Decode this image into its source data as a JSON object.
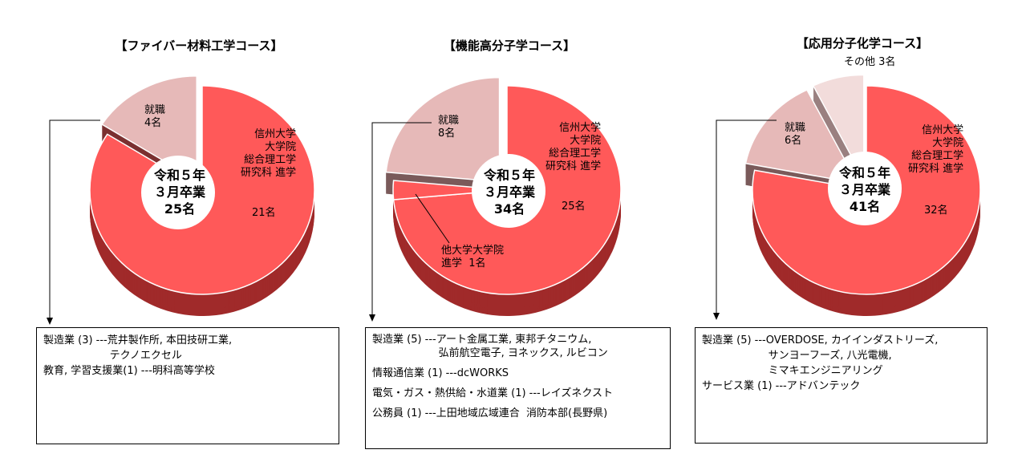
{
  "chart_data": [
    {
      "type": "pie",
      "title": "【ファイバー材料工学コース】",
      "center_text": "令和５年\n３月卒業\n25名",
      "slices": [
        {
          "label": "信州大学\n大学院\n総合理工学\n研究科 進学",
          "value_label": "21名",
          "value": 21,
          "color": "#ff5959",
          "side": "#a02a2a",
          "explode": false
        },
        {
          "label": "就職\n4名",
          "value": 4,
          "color": "#e6b9b8",
          "side": "#7a3030",
          "explode": true
        }
      ]
    },
    {
      "type": "pie",
      "title": "【機能高分子学コース】",
      "center_text": "令和５年\n３月卒業\n34名",
      "slices": [
        {
          "label": "信州大学\n大学院\n総合理工学\n研究科 進学",
          "value_label": "25名",
          "value": 25,
          "color": "#ff5959",
          "side": "#a02a2a",
          "explode": false
        },
        {
          "label": "他大学大学院\n進学  1名",
          "value": 1,
          "color": "#ff5959",
          "side": "#a02a2a",
          "explode": false
        },
        {
          "label": "就職\n8名",
          "value": 8,
          "color": "#e6b9b8",
          "side": "#7a5a5a",
          "explode": true
        }
      ]
    },
    {
      "type": "pie",
      "title": "【応用分子化学コース】",
      "center_text": "令和５年\n３月卒業\n41名",
      "slices": [
        {
          "label": "信州大学\n大学院\n総合理工学\n研究科 進学",
          "value_label": "32名",
          "value": 32,
          "color": "#ff5959",
          "side": "#a02a2a",
          "explode": false
        },
        {
          "label": "就職\n6名",
          "value": 6,
          "color": "#e6b9b8",
          "side": "#7a5a5a",
          "explode": true
        },
        {
          "label": "その他 3名",
          "value": 3,
          "color": "#f2dcdb",
          "side": "#9a8080",
          "explode": true
        }
      ]
    }
  ],
  "boxes": [
    [
      "製造業 (3) ---荒井製作所, 本田技研工業,",
      "                    テクノエクセル",
      "",
      "教育, 学習支援業(1) ---明科高等学校"
    ],
    [
      "製造業 (5) ---アート金属工業, 東邦チタニウム,",
      "                    弘前航空電子, ヨネックス, ルビコン",
      "情報通信業 (1) ---dcWORKS",
      "電気・ガス・熱供給・水道業 (1) ---レイズネクスト",
      "公務員 (1) ---上田地域広域連合  消防本部(長野県)"
    ],
    [
      "製造業 (5) ---OVERDOSE, カイインダストリーズ,",
      "                    サンヨーフーズ, 八光電機,",
      "                    ミマキエンジニアリング",
      "",
      "サービス業 (1) ---アドバンテック"
    ]
  ]
}
